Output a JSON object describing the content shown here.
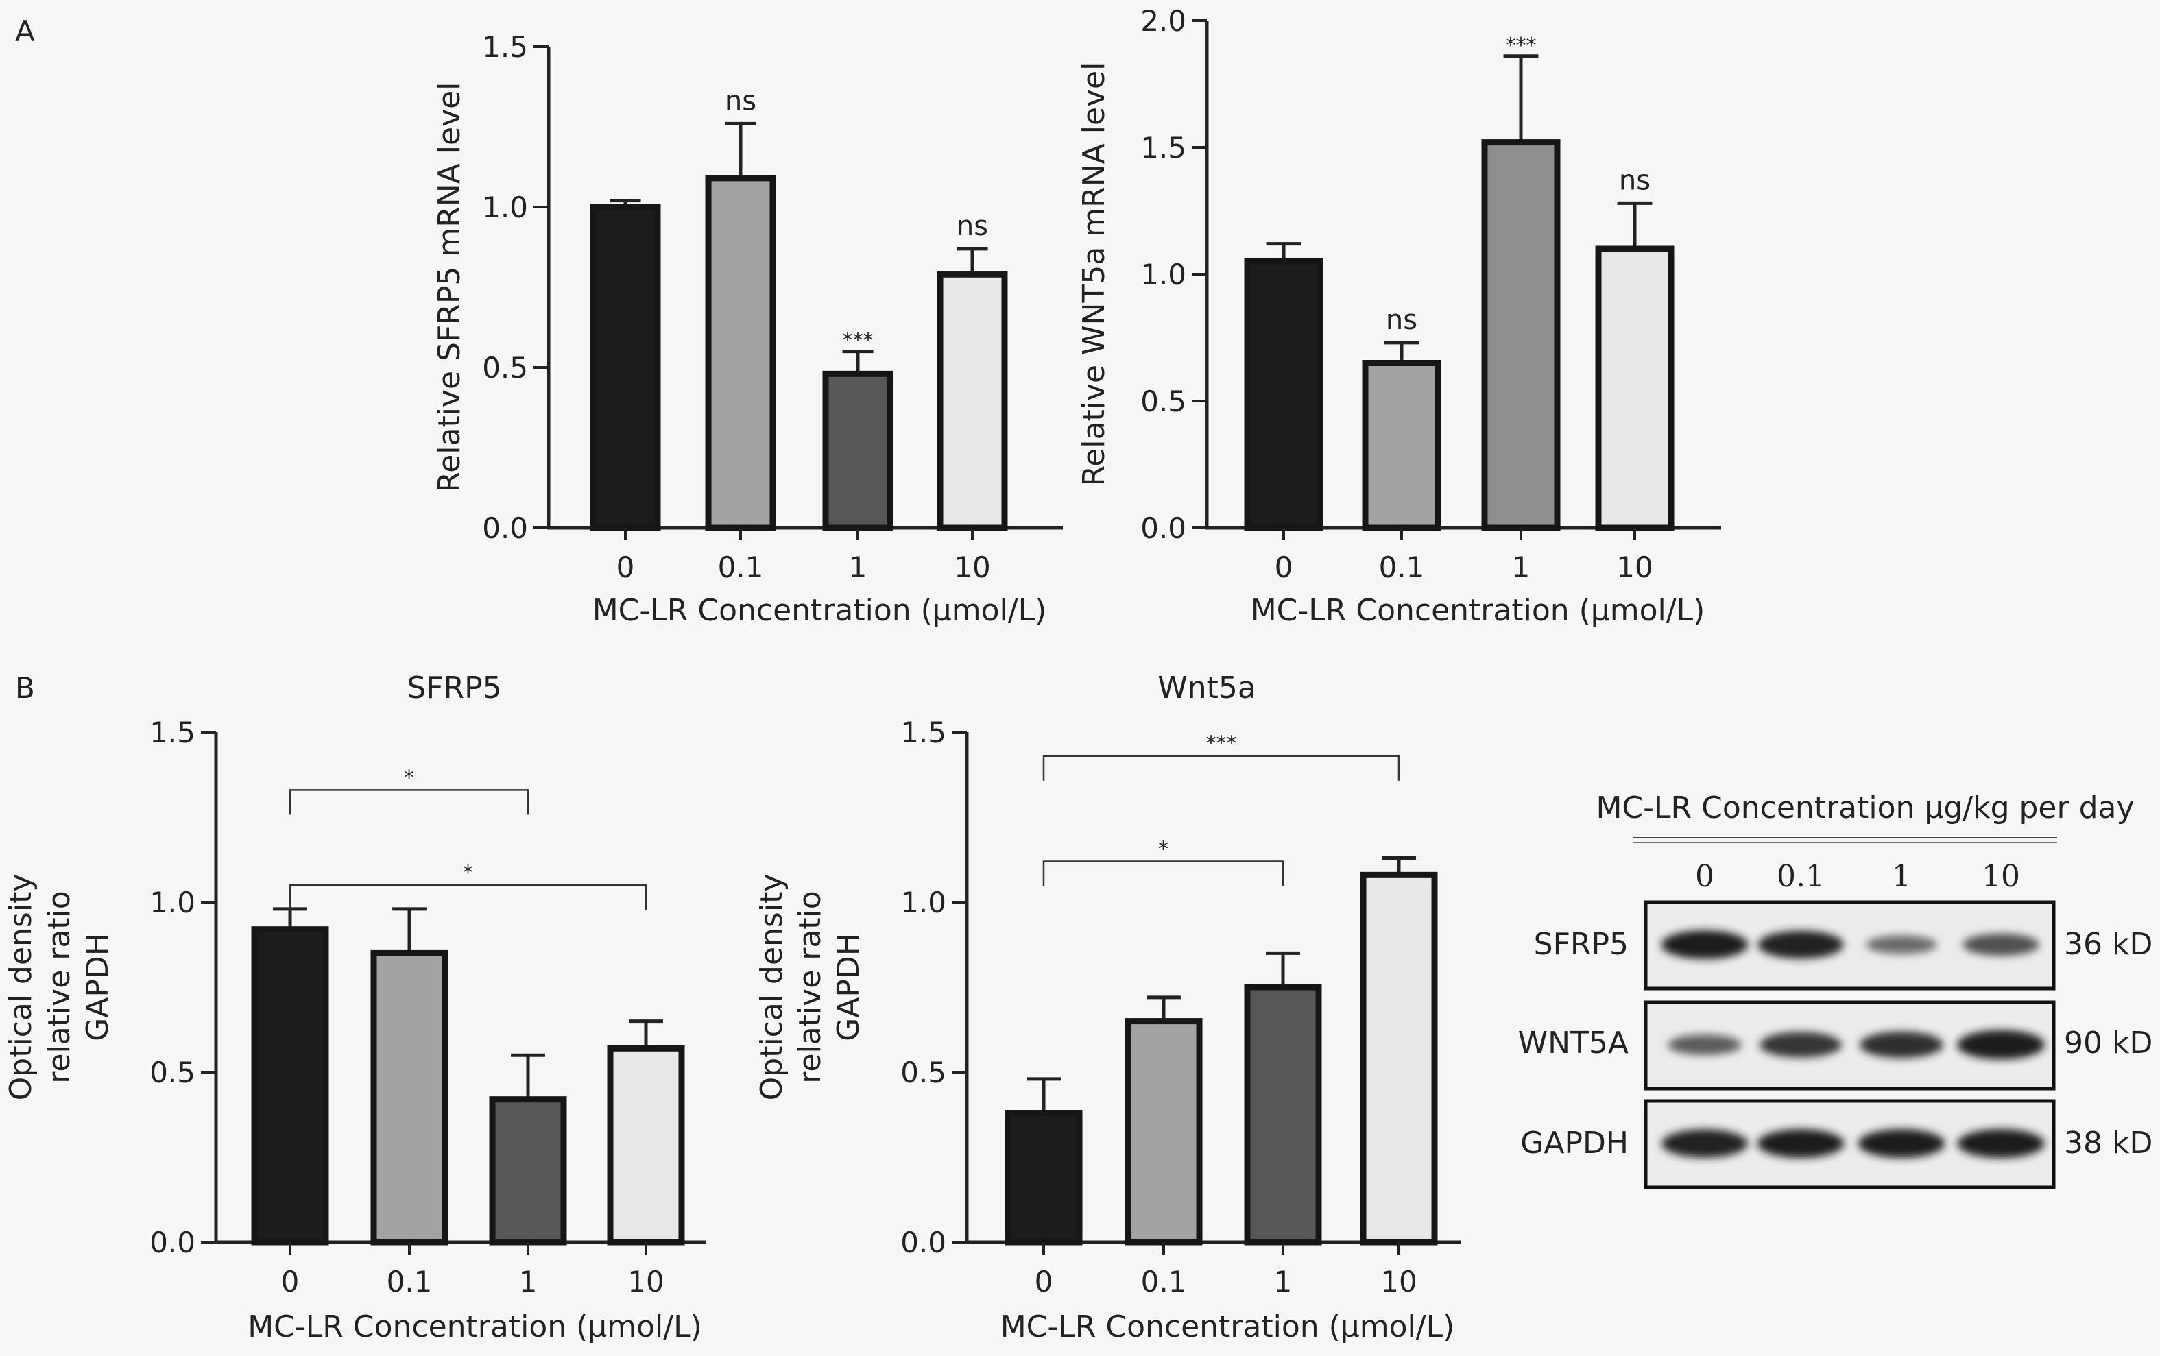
{
  "figure": {
    "panel_a_label": "A",
    "panel_b_label": "B"
  },
  "colors": {
    "bar_0": "#1c1c1c",
    "bar_0_1": "#a3a3a3",
    "bar_1_dark": "#575757",
    "bar_1_mid": "#8e8e8e",
    "bar_10": "#e7e7e7",
    "axis": "#222222",
    "background": "#f6f6f6"
  },
  "chart_data": [
    {
      "id": "a_sfrp5",
      "type": "bar",
      "title": "",
      "categories": [
        "0",
        "0.1",
        "1",
        "10"
      ],
      "values": [
        1.0,
        1.09,
        0.48,
        0.79
      ],
      "errors": [
        0.02,
        0.17,
        0.07,
        0.08
      ],
      "annotations": [
        "",
        "ns",
        "***",
        "ns"
      ],
      "bar_colors": [
        "#1c1c1c",
        "#a3a3a3",
        "#575757",
        "#e7e7e7"
      ],
      "xlabel": "MC-LR Concentration (μmol/L)",
      "ylabel": [
        "Relative SFRP5 mRNA level"
      ],
      "ylim": [
        0,
        1.5
      ],
      "yticks": [
        "0.0",
        "0.5",
        "1.0",
        "1.5"
      ],
      "brackets": [],
      "grid": false
    },
    {
      "id": "a_wnt5a",
      "type": "bar",
      "title": "",
      "categories": [
        "0",
        "0.1",
        "1",
        "10"
      ],
      "values": [
        1.05,
        0.65,
        1.52,
        1.1
      ],
      "errors": [
        0.07,
        0.08,
        0.34,
        0.18
      ],
      "annotations": [
        "",
        "ns",
        "***",
        "ns"
      ],
      "bar_colors": [
        "#1c1c1c",
        "#a3a3a3",
        "#8e8e8e",
        "#e7e7e7"
      ],
      "xlabel": "MC-LR Concentration (μmol/L)",
      "ylabel": [
        "Relative WNT5a mRNA level"
      ],
      "ylim": [
        0,
        2.0
      ],
      "yticks": [
        "0.0",
        "0.5",
        "1.0",
        "1.5",
        "2.0"
      ],
      "brackets": [],
      "grid": false
    },
    {
      "id": "b_sfrp5",
      "type": "bar",
      "title": "SFRP5",
      "categories": [
        "0",
        "0.1",
        "1",
        "10"
      ],
      "values": [
        0.92,
        0.85,
        0.42,
        0.57
      ],
      "errors": [
        0.06,
        0.13,
        0.13,
        0.08
      ],
      "annotations": [
        "",
        "",
        "",
        ""
      ],
      "bar_colors": [
        "#1c1c1c",
        "#a3a3a3",
        "#575757",
        "#e7e7e7"
      ],
      "xlabel": "MC-LR Concentration (μmol/L)",
      "ylabel": [
        "Optical density",
        "relative ratio",
        "GAPDH"
      ],
      "ylim": [
        0,
        1.5
      ],
      "yticks": [
        "0.0",
        "0.5",
        "1.0",
        "1.5"
      ],
      "brackets": [
        {
          "from": 0,
          "to": 2,
          "y": 1.33,
          "label": "*"
        },
        {
          "from": 0,
          "to": 3,
          "y": 1.05,
          "label": "*"
        }
      ],
      "grid": false
    },
    {
      "id": "b_wnt5a",
      "type": "bar",
      "title": "Wnt5a",
      "categories": [
        "0",
        "0.1",
        "1",
        "10"
      ],
      "values": [
        0.38,
        0.65,
        0.75,
        1.08
      ],
      "errors": [
        0.1,
        0.07,
        0.1,
        0.05
      ],
      "annotations": [
        "",
        "",
        "",
        ""
      ],
      "bar_colors": [
        "#1c1c1c",
        "#a3a3a3",
        "#575757",
        "#e7e7e7"
      ],
      "xlabel": "MC-LR Concentration (μmol/L)",
      "ylabel": [
        "Optical density",
        "relative ratio",
        "GAPDH"
      ],
      "ylim": [
        0,
        1.5
      ],
      "yticks": [
        "0.0",
        "0.5",
        "1.0",
        "1.5"
      ],
      "brackets": [
        {
          "from": 0,
          "to": 3,
          "y": 1.43,
          "label": "***"
        },
        {
          "from": 0,
          "to": 2,
          "y": 1.12,
          "label": "*"
        }
      ],
      "grid": false
    }
  ],
  "western_blot": {
    "header": "MC-LR Concentration μg/kg per day",
    "lanes": [
      "0",
      "0.1",
      "1",
      "10"
    ],
    "rows": [
      {
        "protein": "SFRP5",
        "size": "36 kD",
        "intensity": [
          0.92,
          0.88,
          0.35,
          0.55
        ]
      },
      {
        "protein": "WNT5A",
        "size": "90 kD",
        "intensity": [
          0.45,
          0.75,
          0.8,
          0.95
        ]
      },
      {
        "protein": "GAPDH",
        "size": "38 kD",
        "intensity": [
          0.9,
          0.92,
          0.92,
          0.93
        ]
      }
    ]
  }
}
